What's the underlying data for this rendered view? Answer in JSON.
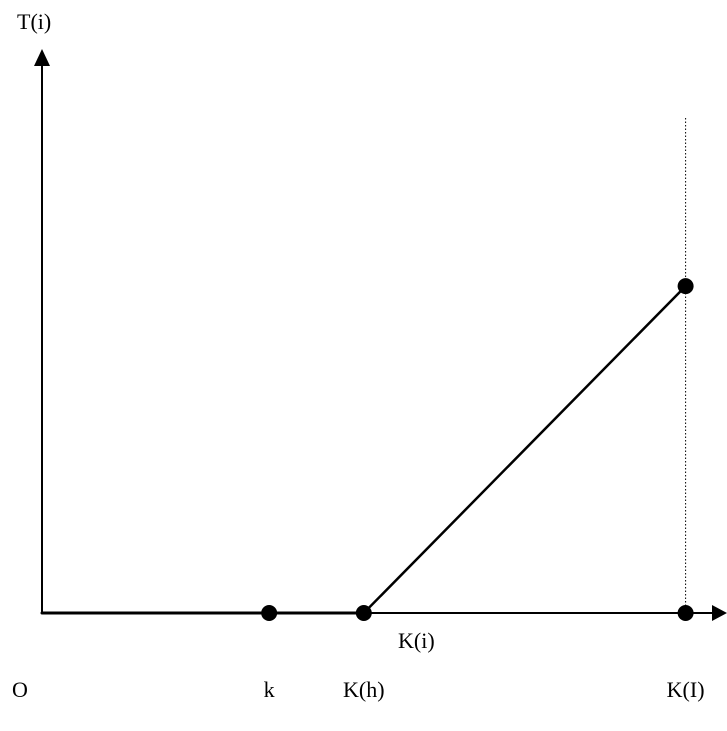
{
  "chart_data": {
    "type": "line",
    "ylabel": "T(i)",
    "xlabel": "K(i)",
    "origin_label": "O",
    "x_ticks": [
      {
        "label": "k",
        "x": 2.4
      },
      {
        "label": "K(h)",
        "x": 3.4
      },
      {
        "label": "K(I)",
        "x": 6.8
      }
    ],
    "series": [
      {
        "points": [
          {
            "x": 0,
            "y": 0
          },
          {
            "x": 3.4,
            "y": 0
          },
          {
            "x": 6.8,
            "y": 3.5
          }
        ]
      }
    ],
    "markers": [
      {
        "x": 2.4,
        "y": 0
      },
      {
        "x": 3.4,
        "y": 0
      },
      {
        "x": 6.8,
        "y": 0
      },
      {
        "x": 6.8,
        "y": 3.5
      }
    ],
    "reference_lines": [
      {
        "orientation": "vertical",
        "x": 6.8,
        "style": "dotted"
      }
    ],
    "xlim": [
      0,
      7.1
    ],
    "ylim": [
      0,
      5.9
    ],
    "grid": false,
    "colors": {
      "ink": "#000000"
    }
  }
}
